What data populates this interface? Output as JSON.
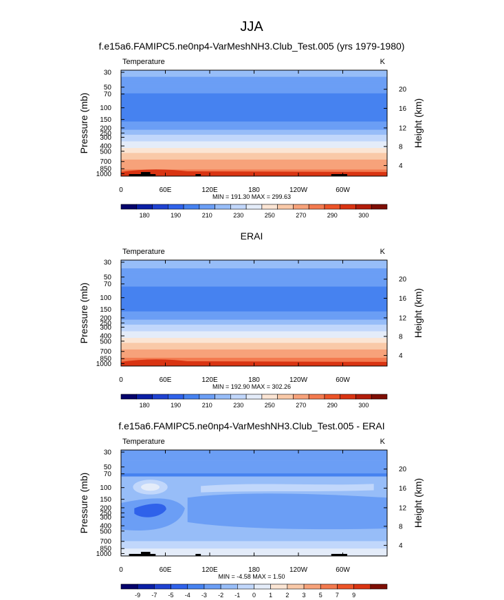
{
  "page_title": "JJA",
  "chart_data": [
    {
      "type": "heatmap",
      "title": "f.e15a6.FAMIPC5.ne0np4-VarMeshNH3.Club_Test.005 (yrs 1979-1980)",
      "left_label": "Temperature",
      "right_label": "K",
      "ylabel": "Pressure (mb)",
      "y2label": "Height (km)",
      "xticks": [
        "0",
        "60E",
        "120E",
        "180",
        "120W",
        "60W"
      ],
      "yticks": [
        "30",
        "50",
        "70",
        "100",
        "150",
        "200",
        "250",
        "300",
        "400",
        "500",
        "700",
        "850",
        "1000"
      ],
      "y2ticks": [
        "20",
        "16",
        "12",
        "8",
        "4"
      ],
      "stats": "MIN = 191.30  MAX = 299.63",
      "colorbar_ticks": [
        "180",
        "190",
        "210",
        "230",
        "250",
        "270",
        "290",
        "300"
      ],
      "pressure_levels": [
        30,
        50,
        70,
        100,
        150,
        200,
        250,
        300,
        400,
        500,
        700,
        850,
        1000
      ],
      "zonal_mean_temperature_K": [
        222,
        215,
        210,
        205,
        208,
        217,
        226,
        233,
        246,
        257,
        272,
        280,
        290
      ],
      "min": 191.3,
      "max": 299.63
    },
    {
      "type": "heatmap",
      "title": "ERAI",
      "left_label": "Temperature",
      "right_label": "K",
      "ylabel": "Pressure (mb)",
      "y2label": "Height (km)",
      "xticks": [
        "0",
        "60E",
        "120E",
        "180",
        "120W",
        "60W"
      ],
      "yticks": [
        "30",
        "50",
        "70",
        "100",
        "150",
        "200",
        "250",
        "300",
        "400",
        "500",
        "700",
        "850",
        "1000"
      ],
      "y2ticks": [
        "20",
        "16",
        "12",
        "8",
        "4"
      ],
      "stats": "MIN = 192.90  MAX = 302.26",
      "colorbar_ticks": [
        "180",
        "190",
        "210",
        "230",
        "250",
        "270",
        "290",
        "300"
      ],
      "pressure_levels": [
        30,
        50,
        70,
        100,
        150,
        200,
        250,
        300,
        400,
        500,
        700,
        850,
        1000
      ],
      "zonal_mean_temperature_K": [
        223,
        216,
        211,
        205,
        208,
        217,
        227,
        234,
        247,
        258,
        273,
        282,
        292
      ],
      "min": 192.9,
      "max": 302.26
    },
    {
      "type": "heatmap",
      "title": "f.e15a6.FAMIPC5.ne0np4-VarMeshNH3.Club_Test.005 - ERAI",
      "left_label": "Temperature",
      "right_label": "K",
      "ylabel": "Pressure (mb)",
      "y2label": "Height (km)",
      "xticks": [
        "0",
        "60E",
        "120E",
        "180",
        "120W",
        "60W"
      ],
      "yticks": [
        "30",
        "50",
        "70",
        "100",
        "150",
        "200",
        "250",
        "300",
        "400",
        "500",
        "700",
        "850",
        "1000"
      ],
      "y2ticks": [
        "20",
        "16",
        "12",
        "8",
        "4"
      ],
      "stats": "MIN = -4.58  MAX =  1.50",
      "colorbar_ticks": [
        "-9",
        "-7",
        "-5",
        "-4",
        "-3",
        "-2",
        "-1",
        "0",
        "1",
        "2",
        "3",
        "5",
        "7",
        "9"
      ],
      "min": -4.58,
      "max": 1.5
    }
  ],
  "colors": {
    "abs_palette": [
      "#05036b",
      "#0a1fa5",
      "#1f42d1",
      "#2f62ea",
      "#4682f0",
      "#6b9ef5",
      "#97bdf8",
      "#c1d7fb",
      "#e4ecf9",
      "#fbe5d4",
      "#f9c9a8",
      "#f7a27a",
      "#f37a4f",
      "#ec5428",
      "#d93412",
      "#b21d0a",
      "#7e0e05"
    ],
    "diff_palette": [
      "#05036b",
      "#0a1fa5",
      "#1f42d1",
      "#2f62ea",
      "#4682f0",
      "#6b9ef5",
      "#97bdf8",
      "#c1d7fb",
      "#e4ecf9",
      "#fbe5d4",
      "#f9c9a8",
      "#f7a27a",
      "#f37a4f",
      "#ec5428",
      "#d93412",
      "#7e0e05"
    ],
    "topography": "#000000"
  }
}
